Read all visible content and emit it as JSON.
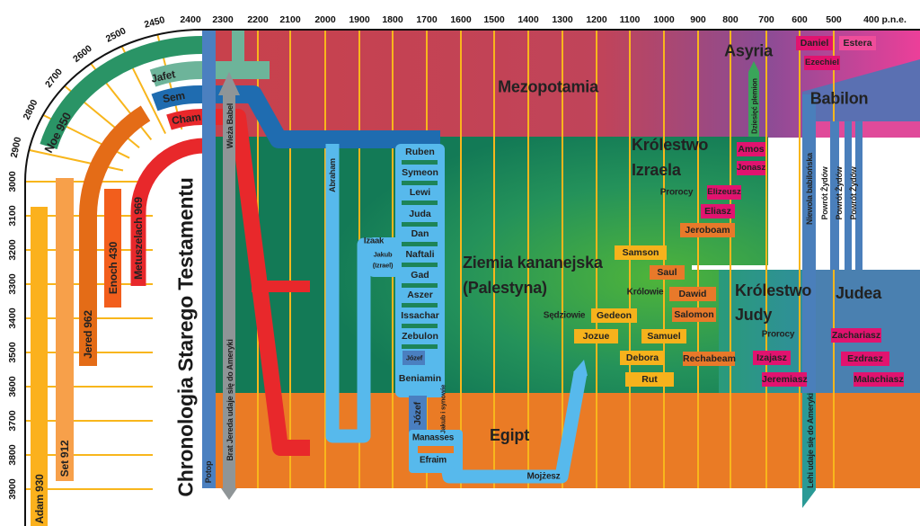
{
  "title": "Chronologia Starego Testamentu",
  "axis": {
    "top": [
      "2400",
      "2300",
      "2200",
      "2100",
      "2000",
      "1900",
      "1800",
      "1700",
      "1600",
      "1500",
      "1400",
      "1300",
      "1200",
      "1100",
      "1000",
      "900",
      "800",
      "700",
      "600",
      "500",
      "400 p.n.e."
    ],
    "arc": [
      "2450",
      "2500",
      "2600",
      "2700",
      "2800",
      "2900"
    ],
    "left": [
      "3000",
      "3100",
      "3200",
      "3300",
      "3400",
      "3500",
      "3600",
      "3700",
      "3800",
      "3900"
    ]
  },
  "patriarchs": {
    "noe": "Noe 950",
    "jafet": "Jafet",
    "sem": "Sem",
    "cham": "Cham",
    "metuszelach": "Metuszelach 969",
    "enoch": "Enoch 430",
    "jered": "Jered 962",
    "set": "Set 912",
    "adam": "Adam 930"
  },
  "events": {
    "potop": "Potop",
    "babel": "Wieża Babel",
    "brat_jereda": "Brat Jereda udaje się do Ameryki",
    "abraham": "Abraham",
    "izaak": "Izaak",
    "jakub": "Jakub",
    "izrael": "(Izrael)",
    "jozef_small": "Józef",
    "jozef": "Józef",
    "jakub_synowie": "Jakub i synowie",
    "manasses": "Manasses",
    "efraim": "Efraim",
    "mojzesz": "Mojżesz",
    "dziesiec_plemion": "Dziesięć plemion",
    "niewola": "Niewola babilońska",
    "powrot": "Powrót Żydów",
    "lehi": "Lehi udaje się do Ameryki"
  },
  "tribes": [
    "Ruben",
    "Symeon",
    "Lewi",
    "Juda",
    "Dan",
    "Naftali",
    "Gad",
    "Aszer",
    "Issachar",
    "Zebulon",
    "Beniamin"
  ],
  "regions": {
    "mezopotamia": "Mezopotamia",
    "asyria": "Asyria",
    "babilon": "Babilon",
    "izrael_1": "Królestwo",
    "izrael_2": "Izraela",
    "kanaan_1": "Ziemia kananejska",
    "kanaan_2": "(Palestyna)",
    "juda_1": "Królestwo",
    "juda_2": "Judy",
    "judea": "Judea",
    "egipt": "Egipt"
  },
  "groups": {
    "sedziowie": "Sędziowie",
    "krolowie": "Królowie",
    "prorocy_izrael": "Prorocy",
    "prorocy_juda": "Prorocy"
  },
  "people": {
    "samson": "Samson",
    "saul": "Saul",
    "dawid": "Dawid",
    "salomon": "Salomon",
    "jeroboam": "Jeroboam",
    "rechabeam": "Rechabeam",
    "gedeon": "Gedeon",
    "jozue": "Jozue",
    "samuel": "Samuel",
    "debora": "Debora",
    "rut": "Rut",
    "elizeusz": "Elizeusz",
    "eliasz": "Eliasz",
    "amos": "Amos",
    "jonasz": "Jonasz",
    "daniel": "Daniel",
    "estera": "Estera",
    "ezechiel": "Ezechiel",
    "izajasz": "Izajasz",
    "jeremiasz": "Jeremiasz",
    "zachariasz": "Zachariasz",
    "ezdrasz": "Ezdrasz",
    "malachiasz": "Malachiasz"
  },
  "colors": {
    "prophet": "#e1136f",
    "king": "#e8792a",
    "judge": "#f6b21c",
    "egypt": "#ea7b25",
    "canaan": "#137a56",
    "mesopotamia": "#c8414c",
    "gridline": "#f8b61c"
  }
}
